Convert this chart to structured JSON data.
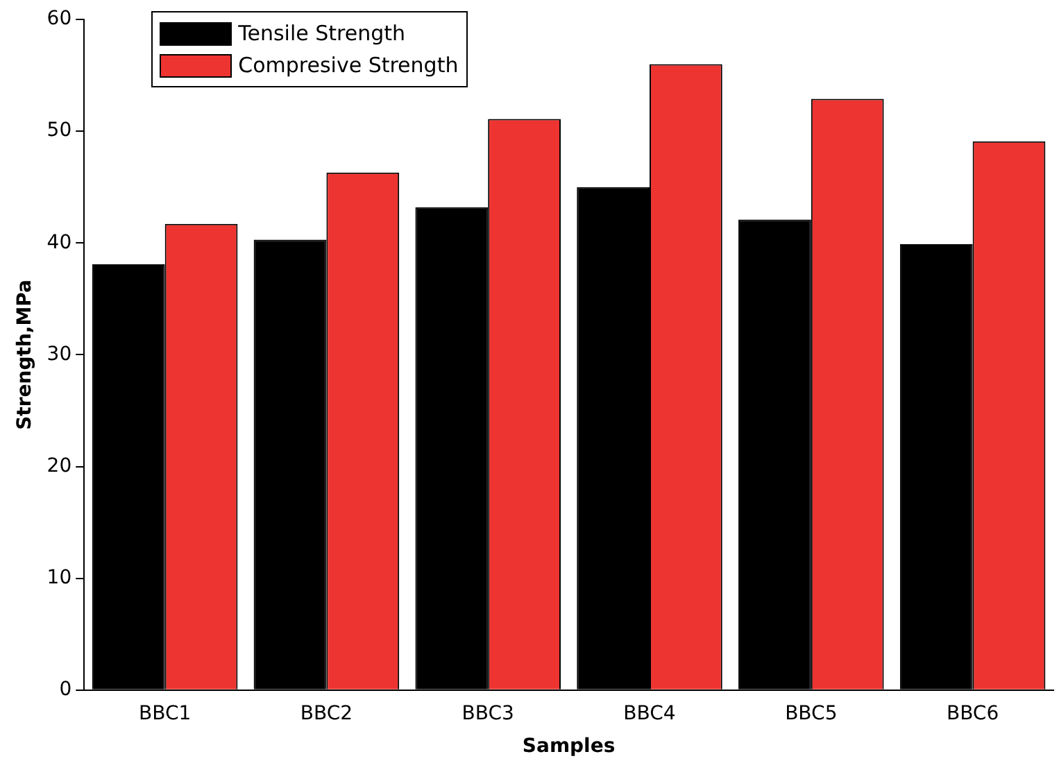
{
  "chart_data": {
    "type": "bar",
    "xlabel": "Samples",
    "ylabel": "Strength,MPa",
    "categories": [
      "BBC1",
      "BBC2",
      "BBC3",
      "BBC4",
      "BBC5",
      "BBC6"
    ],
    "series": [
      {
        "name": "Tensile Strength",
        "color": "#000000",
        "values": [
          38.1,
          40.3,
          43.2,
          45.0,
          42.1,
          39.9
        ]
      },
      {
        "name": "Compresive Strength",
        "color": "#ee3431",
        "values": [
          41.7,
          46.3,
          51.1,
          56.0,
          52.9,
          49.1
        ]
      }
    ],
    "ylim": [
      0,
      60
    ],
    "yticks": [
      0,
      10,
      20,
      30,
      40,
      50,
      60
    ],
    "grid": false,
    "legend": "top left"
  }
}
